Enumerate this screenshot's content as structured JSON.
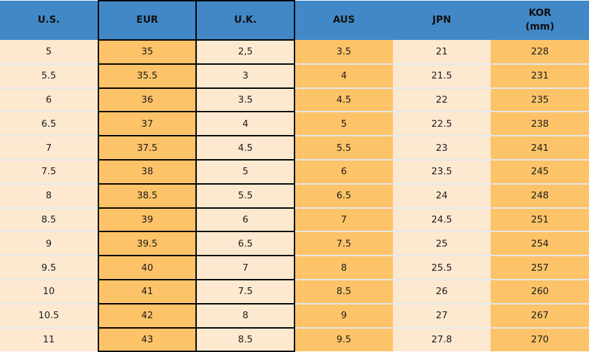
{
  "chart_data": {
    "type": "table",
    "columns": [
      {
        "label": "U.S."
      },
      {
        "label": "EUR"
      },
      {
        "label": "U.K."
      },
      {
        "label": "AUS"
      },
      {
        "label": "JPN"
      },
      {
        "label": "KOR",
        "sublabel": "(mm)"
      }
    ],
    "rows": [
      [
        "5",
        "35",
        "2,5",
        "3.5",
        "21",
        "228"
      ],
      [
        "5.5",
        "35.5",
        "3",
        "4",
        "21.5",
        "231"
      ],
      [
        "6",
        "36",
        "3.5",
        "4.5",
        "22",
        "235"
      ],
      [
        "6.5",
        "37",
        "4",
        "5",
        "22.5",
        "238"
      ],
      [
        "7",
        "37.5",
        "4.5",
        "5.5",
        "23",
        "241"
      ],
      [
        "7.5",
        "38",
        "5",
        "6",
        "23.5",
        "245"
      ],
      [
        "8",
        "38.5",
        "5.5",
        "6.5",
        "24",
        "248"
      ],
      [
        "8.5",
        "39",
        "6",
        "7",
        "24.5",
        "251"
      ],
      [
        "9",
        "39.5",
        "6.5",
        "7.5",
        "25",
        "254"
      ],
      [
        "9.5",
        "40",
        "7",
        "8",
        "25.5",
        "257"
      ],
      [
        "10",
        "41",
        "7.5",
        "8.5",
        "26",
        "260"
      ],
      [
        "10.5",
        "42",
        "8",
        "9",
        "27",
        "267"
      ],
      [
        "11",
        "43",
        "8.5",
        "9.5",
        "27.8",
        "270"
      ]
    ]
  },
  "colors": {
    "header_bg": "#4288C6",
    "column_orange": "#FDC368",
    "column_cream": "#FDE9D0",
    "highlight_border": "#000000",
    "row_separator": "#E2E8EE",
    "text": "#1C1C1C"
  }
}
